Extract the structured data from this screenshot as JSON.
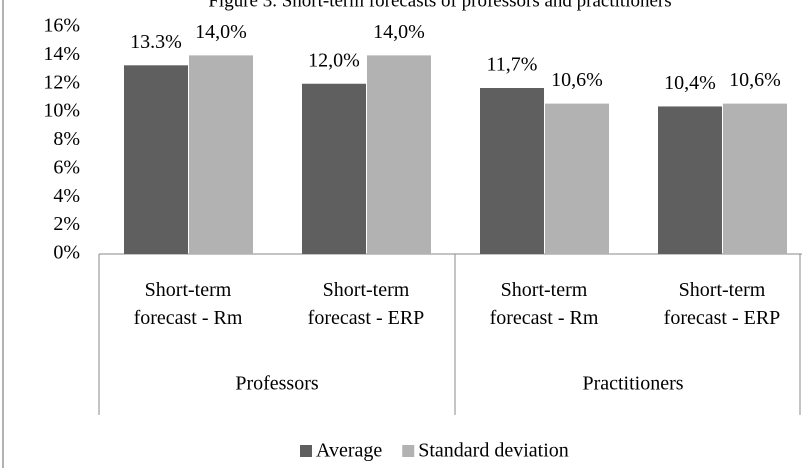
{
  "chart_data": {
    "type": "bar",
    "title": "Figure 3. Short-term forecasts of professors and practitioners",
    "categories": [
      "Short-term forecast - Rm",
      "Short-term forecast - ERP",
      "Short-term forecast - Rm",
      "Short-term forecast - ERP"
    ],
    "groups": [
      "Professors",
      "Practitioners"
    ],
    "series": [
      {
        "name": "Average",
        "color": "#5f5f5f",
        "values": [
          13.3,
          12.0,
          11.7,
          10.4
        ],
        "value_labels": [
          "13.3%",
          "12,0%",
          "11,7%",
          "10,4%"
        ]
      },
      {
        "name": "Standard deviation",
        "color": "#b2b2b2",
        "values": [
          14.0,
          14.0,
          10.6,
          10.6
        ],
        "value_labels": [
          "14,0%",
          "14,0%",
          "10,6%",
          "10,6%"
        ]
      }
    ],
    "ylim": [
      0,
      16
    ],
    "yticks": [
      {
        "value": 0,
        "label": "0%"
      },
      {
        "value": 2,
        "label": "2%"
      },
      {
        "value": 4,
        "label": "4%"
      },
      {
        "value": 6,
        "label": "6%"
      },
      {
        "value": 8,
        "label": "8%"
      },
      {
        "value": 10,
        "label": "10%"
      },
      {
        "value": 12,
        "label": "12%"
      },
      {
        "value": 14,
        "label": "14%"
      },
      {
        "value": 16,
        "label": "16%"
      }
    ],
    "grid": false
  }
}
